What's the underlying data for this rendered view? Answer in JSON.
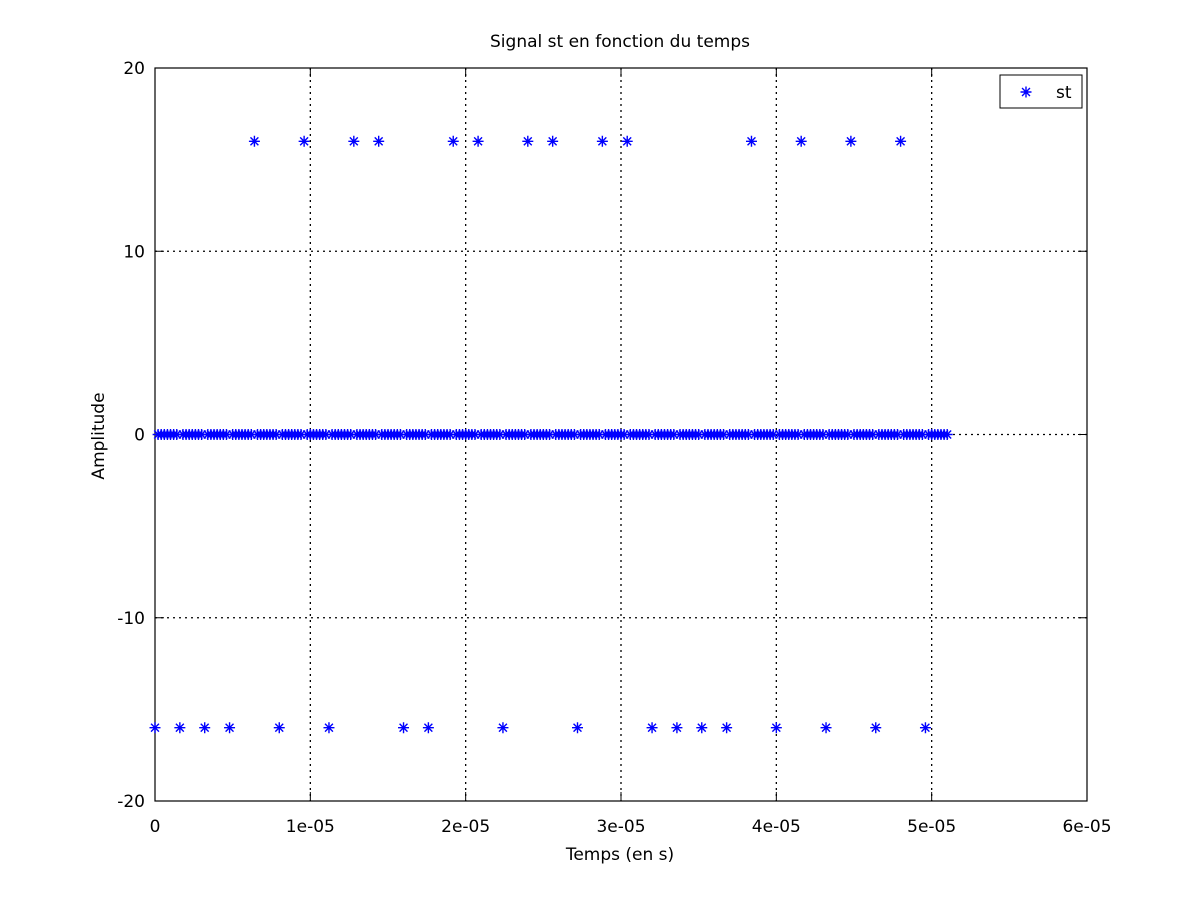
{
  "chart_data": {
    "type": "scatter",
    "title": "Signal st en fonction du temps",
    "xlabel": "Temps (en s)",
    "ylabel": "Amplitude",
    "xlim": [
      0,
      6e-05
    ],
    "ylim": [
      -20,
      20
    ],
    "xticks": [
      0,
      1e-05,
      2e-05,
      3e-05,
      4e-05,
      5e-05,
      6e-05
    ],
    "xtick_labels": [
      "0",
      "1e-05",
      "2e-05",
      "3e-05",
      "4e-05",
      "5e-05",
      "6e-05"
    ],
    "yticks": [
      -20,
      -10,
      0,
      10,
      20
    ],
    "ytick_labels": [
      "-20",
      "-10",
      "0",
      "10",
      "20"
    ],
    "grid": true,
    "legend_position": "top-right",
    "marker": "asterisk",
    "series": [
      {
        "name": "st",
        "color": "#0000ff",
        "sample_period": 2e-07,
        "sample_count": 256,
        "default_value": 0,
        "points": [
          {
            "x": 0,
            "y": -16
          },
          {
            "x": 1.6e-06,
            "y": -16
          },
          {
            "x": 3.2e-06,
            "y": -16
          },
          {
            "x": 4.8e-06,
            "y": -16
          },
          {
            "x": 6.4e-06,
            "y": 16
          },
          {
            "x": 8e-06,
            "y": -16
          },
          {
            "x": 9.6e-06,
            "y": 16
          },
          {
            "x": 1.12e-05,
            "y": -16
          },
          {
            "x": 1.28e-05,
            "y": 16
          },
          {
            "x": 1.44e-05,
            "y": 16
          },
          {
            "x": 1.6e-05,
            "y": -16
          },
          {
            "x": 1.76e-05,
            "y": -16
          },
          {
            "x": 1.92e-05,
            "y": 16
          },
          {
            "x": 2.08e-05,
            "y": 16
          },
          {
            "x": 2.24e-05,
            "y": -16
          },
          {
            "x": 2.4e-05,
            "y": 16
          },
          {
            "x": 2.56e-05,
            "y": 16
          },
          {
            "x": 2.72e-05,
            "y": -16
          },
          {
            "x": 2.88e-05,
            "y": 16
          },
          {
            "x": 3.04e-05,
            "y": 16
          },
          {
            "x": 3.2e-05,
            "y": -16
          },
          {
            "x": 3.36e-05,
            "y": -16
          },
          {
            "x": 3.52e-05,
            "y": -16
          },
          {
            "x": 3.68e-05,
            "y": -16
          },
          {
            "x": 3.84e-05,
            "y": 16
          },
          {
            "x": 4e-05,
            "y": -16
          },
          {
            "x": 4.16e-05,
            "y": 16
          },
          {
            "x": 4.32e-05,
            "y": -16
          },
          {
            "x": 4.48e-05,
            "y": 16
          },
          {
            "x": 4.64e-05,
            "y": -16
          },
          {
            "x": 4.8e-05,
            "y": 16
          },
          {
            "x": 4.96e-05,
            "y": -16
          }
        ]
      }
    ]
  }
}
